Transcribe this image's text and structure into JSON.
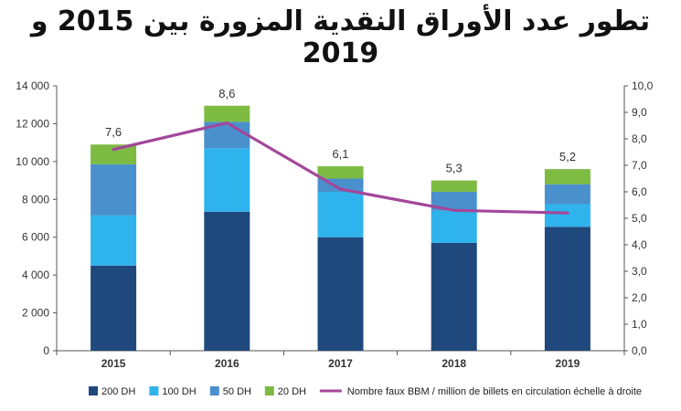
{
  "chart_data": {
    "type": "bar",
    "title": "تطور عدد الأوراق النقدية المزورة بين 2015 و 2019",
    "categories": [
      "2015",
      "2016",
      "2017",
      "2018",
      "2019"
    ],
    "stacked": true,
    "series": [
      {
        "name": "200 DH",
        "color": "#1f497d",
        "values": [
          4500,
          7350,
          6000,
          5700,
          6550
        ]
      },
      {
        "name": "100 DH",
        "color": "#2fb3ec",
        "values": [
          2650,
          3350,
          2400,
          1700,
          1200
        ]
      },
      {
        "name": "50 DH",
        "color": "#4a90cd",
        "values": [
          2700,
          1400,
          700,
          1000,
          1050
        ]
      },
      {
        "name": "20 DH",
        "color": "#7dbb42",
        "values": [
          1050,
          850,
          650,
          600,
          800
        ]
      }
    ],
    "line_series": {
      "name": "Nombre faux BBM / million de billets en circulation échelle à droite",
      "color": "#a3479b",
      "axis": "right",
      "values": [
        7.6,
        8.6,
        6.1,
        5.3,
        5.2
      ],
      "labels": [
        "7,6",
        "8,6",
        "6,1",
        "5,3",
        "5,2"
      ]
    },
    "y_left": {
      "ylim": [
        0,
        14000
      ],
      "ticks": [
        0,
        2000,
        4000,
        6000,
        8000,
        10000,
        12000,
        14000
      ],
      "tick_labels": [
        "0",
        "2 000",
        "4 000",
        "6 000",
        "8 000",
        "10 000",
        "12 000",
        "14 000"
      ]
    },
    "y_right": {
      "ylim": [
        0,
        10
      ],
      "ticks": [
        0,
        1,
        2,
        3,
        4,
        5,
        6,
        7,
        8,
        9,
        10
      ],
      "tick_labels": [
        "0,0",
        "1,0",
        "2,0",
        "3,0",
        "4,0",
        "5,0",
        "6,0",
        "7,0",
        "8,0",
        "9,0",
        "10,0"
      ]
    },
    "grid": false,
    "legend_position": "bottom"
  }
}
